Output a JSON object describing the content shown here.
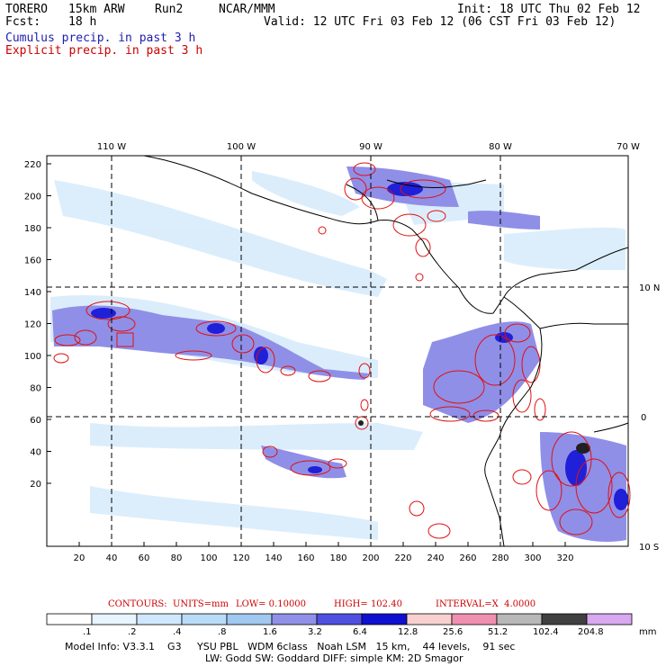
{
  "header": {
    "model": "TORERO",
    "resolution": "15km ARW",
    "run": "Run2",
    "org": "NCAR/MMM",
    "init": "Init: 18 UTC Thu 02 Feb 12",
    "fcst_label": "Fcst:",
    "fcst_value": "18 h",
    "valid": "Valid: 12 UTC Fri 03 Feb 12 (06 CST Fri 03 Feb 12)",
    "line_cumulus": "Cumulus precip. in past 3 h",
    "line_explicit": "Explicit precip. in past 3 h"
  },
  "map": {
    "lon_labels": [
      "110 W",
      "100 W",
      "90 W",
      "80 W",
      "70 W"
    ],
    "lat_labels": [
      "10 N",
      "0",
      "10 S"
    ],
    "y_ticks": [
      "220",
      "200",
      "180",
      "160",
      "140",
      "120",
      "100",
      "80",
      "60",
      "40",
      "20"
    ],
    "x_ticks": [
      "20",
      "40",
      "60",
      "80",
      "100",
      "120",
      "140",
      "160",
      "180",
      "200",
      "220",
      "240",
      "260",
      "280",
      "300",
      "320"
    ]
  },
  "contours": {
    "units": "CONTOURS:  UNITS=mm",
    "low": "LOW= 0.10000",
    "high": "HIGH= 102.40",
    "interval": "INTERVAL=X  4.0000"
  },
  "colorbar": {
    "labels": [
      ".1",
      ".2",
      ".4",
      ".8",
      "1.6",
      "3.2",
      "6.4",
      "12.8",
      "25.6",
      "51.2",
      "102.4",
      "204.8"
    ],
    "units": "mm",
    "colors": [
      "#ffffff",
      "#e8f4ff",
      "#d0e8ff",
      "#b8dcf8",
      "#a0c8f0",
      "#9090e8",
      "#5050e0",
      "#1010d0",
      "#f8d0d0",
      "#f090b0",
      "#b8b8b8",
      "#404040",
      "#d8a8f0"
    ]
  },
  "footer": {
    "line1": "Model Info: V3.3.1    G3     YSU PBL   WDM 6class   Noah LSM   15 km,    44 levels,    91 sec",
    "line2": "LW: Godd SW: Goddard DIFF: simple KM: 2D Smagor"
  }
}
